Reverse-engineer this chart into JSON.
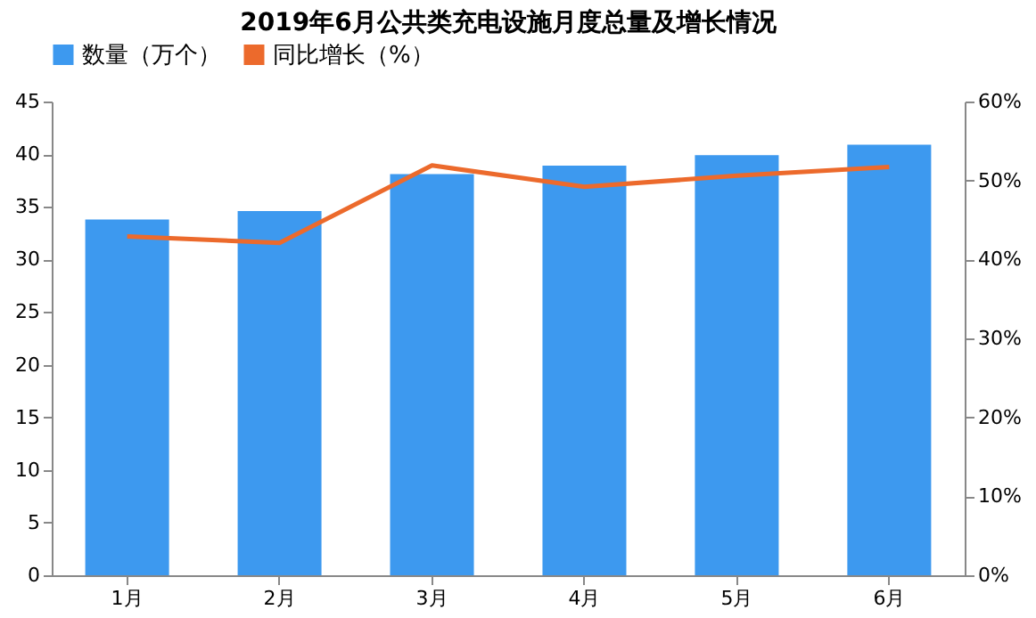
{
  "chart_data": {
    "type": "bar",
    "title": "2019年6月公共类充电设施月度总量及增长情况",
    "categories": [
      "1月",
      "2月",
      "3月",
      "4月",
      "5月",
      "6月"
    ],
    "series": [
      {
        "name": "数量（万个）",
        "color": "#3d99ef",
        "values": [
          33.8,
          34.6,
          38.1,
          38.9,
          39.9,
          40.9
        ]
      },
      {
        "name": "同比增长（%）",
        "color": "#ec6a2c",
        "type": "line",
        "axis": "y2",
        "values": [
          42.9,
          42.1,
          51.9,
          49.2,
          50.6,
          51.7
        ]
      }
    ],
    "ylim": [
      0,
      45
    ],
    "yticks": [
      0,
      5,
      10,
      15,
      20,
      25,
      30,
      35,
      40,
      45
    ],
    "y2lim": [
      0,
      60
    ],
    "y2ticks": [
      {
        "value": 0,
        "label": "0%"
      },
      {
        "value": 10,
        "label": "10%"
      },
      {
        "value": 20,
        "label": "20%"
      },
      {
        "value": 30,
        "label": "30%"
      },
      {
        "value": 40,
        "label": "40%"
      },
      {
        "value": 50,
        "label": "50%"
      },
      {
        "value": 60,
        "label": "60%"
      }
    ],
    "legend": "top",
    "grid": false
  }
}
